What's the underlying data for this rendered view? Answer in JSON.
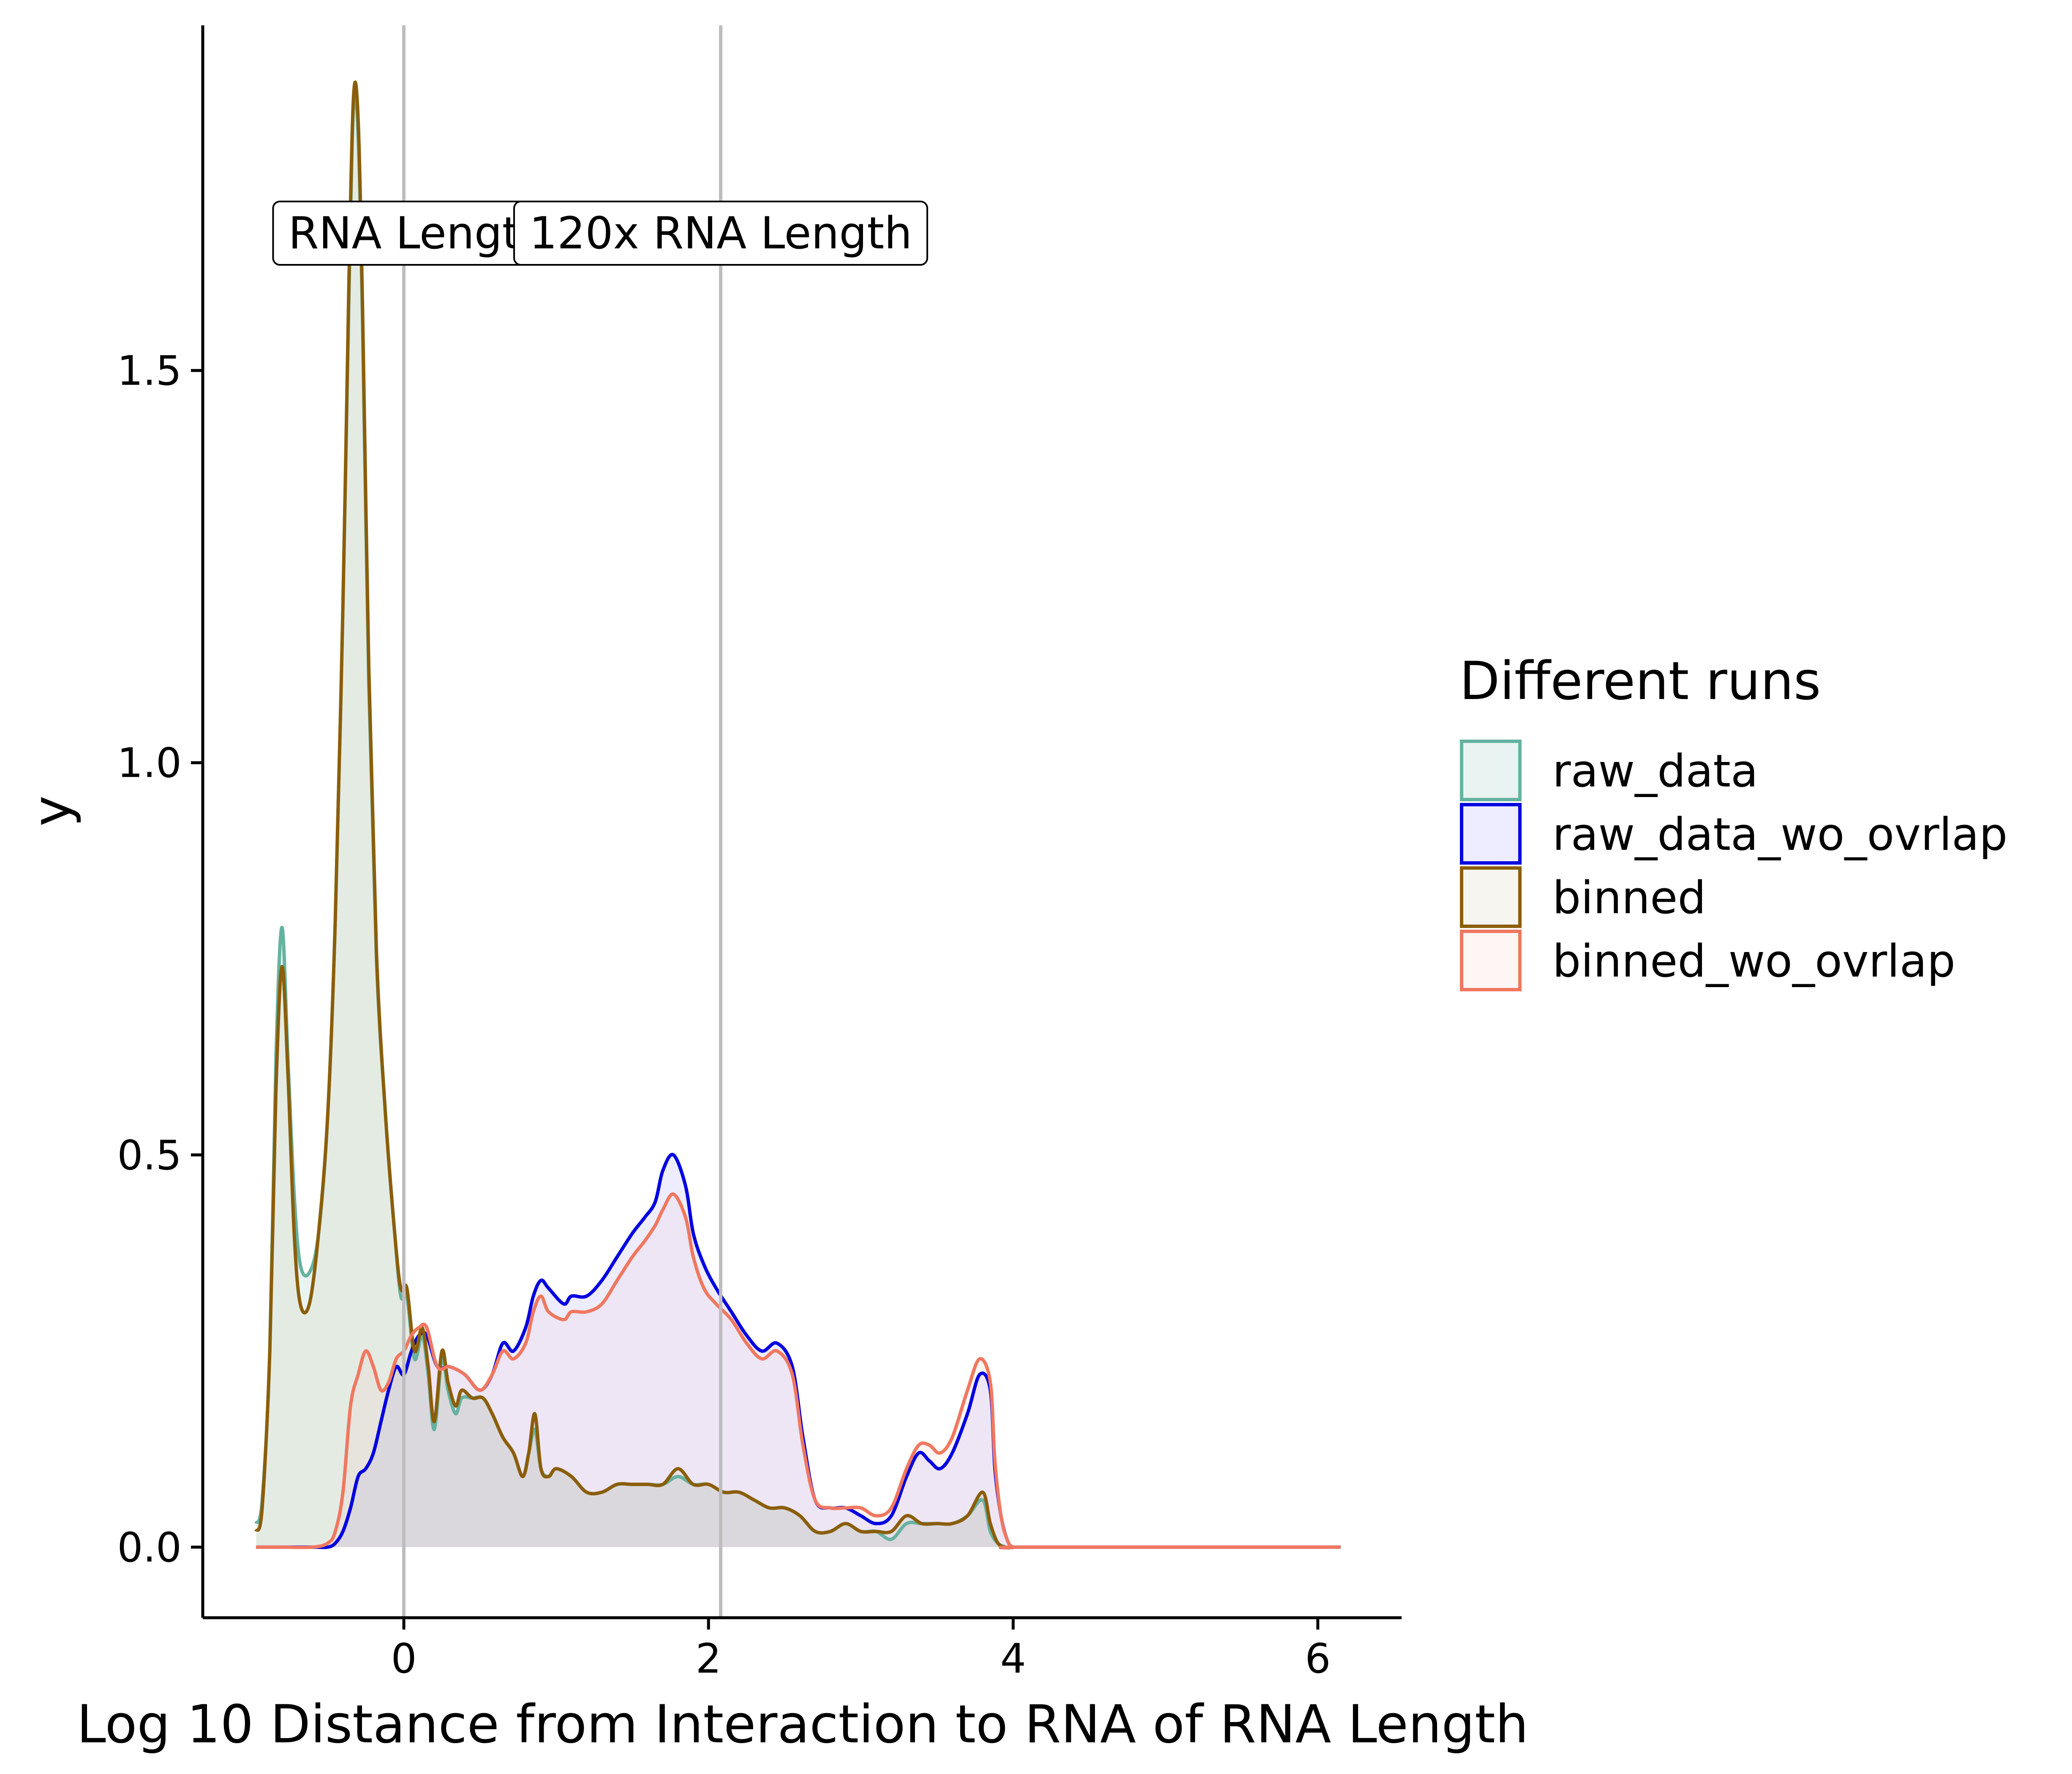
{
  "chart_data": {
    "type": "area",
    "title": "",
    "xlabel": "Log 10 Distance from Interaction to RNA of RNA Length",
    "ylabel": "y",
    "xlim": [
      -1.32,
      6.55
    ],
    "ylim": [
      -0.09,
      1.94
    ],
    "xticks": [
      0,
      2,
      4,
      6
    ],
    "yticks": [
      0.0,
      0.5,
      1.0,
      1.5
    ],
    "xtick_labels": [
      "0",
      "2",
      "4",
      "6"
    ],
    "ytick_labels": [
      "0.0",
      "0.5",
      "1.0",
      "1.5"
    ],
    "grid": false,
    "legend": {
      "title": "Different runs",
      "position": "right",
      "entries": [
        "raw_data",
        "raw_data_wo_ovrlap",
        "binned",
        "binned_wo_ovrlap"
      ]
    },
    "reference_lines": [
      {
        "x": 0.0,
        "label": "RNA Lengt"
      },
      {
        "x": 2.08,
        "label": "120x RNA Length"
      }
    ],
    "series": [
      {
        "name": "raw_data",
        "color": "#66b2a0",
        "fill": "#66b2a0",
        "points": [
          [
            -0.97,
            0.03
          ],
          [
            -0.93,
            0.06
          ],
          [
            -0.88,
            0.25
          ],
          [
            -0.84,
            0.62
          ],
          [
            -0.8,
            0.79
          ],
          [
            -0.76,
            0.62
          ],
          [
            -0.72,
            0.45
          ],
          [
            -0.68,
            0.36
          ],
          [
            -0.62,
            0.35
          ],
          [
            -0.56,
            0.4
          ],
          [
            -0.5,
            0.55
          ],
          [
            -0.45,
            0.8
          ],
          [
            -0.4,
            1.2
          ],
          [
            -0.36,
            1.6
          ],
          [
            -0.33,
            1.84
          ],
          [
            -0.3,
            1.8
          ],
          [
            -0.27,
            1.55
          ],
          [
            -0.23,
            1.1
          ],
          [
            -0.18,
            0.75
          ],
          [
            -0.12,
            0.55
          ],
          [
            -0.06,
            0.4
          ],
          [
            -0.02,
            0.32
          ],
          [
            0.02,
            0.32
          ],
          [
            0.07,
            0.24
          ],
          [
            0.12,
            0.27
          ],
          [
            0.16,
            0.22
          ],
          [
            0.2,
            0.15
          ],
          [
            0.25,
            0.24
          ],
          [
            0.29,
            0.2
          ],
          [
            0.34,
            0.17
          ],
          [
            0.38,
            0.19
          ],
          [
            0.45,
            0.19
          ],
          [
            0.52,
            0.19
          ],
          [
            0.58,
            0.17
          ],
          [
            0.65,
            0.14
          ],
          [
            0.72,
            0.12
          ],
          [
            0.78,
            0.09
          ],
          [
            0.82,
            0.12
          ],
          [
            0.86,
            0.15
          ],
          [
            0.9,
            0.1
          ],
          [
            0.95,
            0.09
          ],
          [
            1.0,
            0.1
          ],
          [
            1.1,
            0.09
          ],
          [
            1.2,
            0.07
          ],
          [
            1.3,
            0.07
          ],
          [
            1.4,
            0.08
          ],
          [
            1.5,
            0.08
          ],
          [
            1.6,
            0.08
          ],
          [
            1.7,
            0.08
          ],
          [
            1.8,
            0.09
          ],
          [
            1.9,
            0.08
          ],
          [
            2.0,
            0.08
          ],
          [
            2.1,
            0.07
          ],
          [
            2.2,
            0.07
          ],
          [
            2.3,
            0.06
          ],
          [
            2.4,
            0.05
          ],
          [
            2.5,
            0.05
          ],
          [
            2.6,
            0.04
          ],
          [
            2.7,
            0.02
          ],
          [
            2.8,
            0.02
          ],
          [
            2.9,
            0.03
          ],
          [
            3.0,
            0.02
          ],
          [
            3.1,
            0.02
          ],
          [
            3.2,
            0.01
          ],
          [
            3.3,
            0.03
          ],
          [
            3.4,
            0.03
          ],
          [
            3.5,
            0.03
          ],
          [
            3.6,
            0.03
          ],
          [
            3.7,
            0.04
          ],
          [
            3.8,
            0.06
          ],
          [
            3.85,
            0.02
          ],
          [
            3.9,
            0.005
          ],
          [
            3.95,
            0.0
          ]
        ]
      },
      {
        "name": "raw_data_wo_ovrlap",
        "color": "#0000e0",
        "fill": "#8080ff",
        "points": [
          [
            -0.97,
            0.0
          ],
          [
            -0.8,
            0.0
          ],
          [
            -0.6,
            0.0
          ],
          [
            -0.5,
            0.0
          ],
          [
            -0.45,
            0.005
          ],
          [
            -0.4,
            0.02
          ],
          [
            -0.35,
            0.05
          ],
          [
            -0.3,
            0.09
          ],
          [
            -0.25,
            0.1
          ],
          [
            -0.2,
            0.12
          ],
          [
            -0.15,
            0.16
          ],
          [
            -0.1,
            0.2
          ],
          [
            -0.05,
            0.23
          ],
          [
            0.0,
            0.22
          ],
          [
            0.05,
            0.25
          ],
          [
            0.1,
            0.27
          ],
          [
            0.15,
            0.27
          ],
          [
            0.22,
            0.23
          ],
          [
            0.3,
            0.23
          ],
          [
            0.4,
            0.22
          ],
          [
            0.5,
            0.2
          ],
          [
            0.58,
            0.22
          ],
          [
            0.65,
            0.26
          ],
          [
            0.72,
            0.25
          ],
          [
            0.8,
            0.28
          ],
          [
            0.85,
            0.32
          ],
          [
            0.9,
            0.34
          ],
          [
            0.95,
            0.33
          ],
          [
            1.05,
            0.31
          ],
          [
            1.1,
            0.32
          ],
          [
            1.2,
            0.32
          ],
          [
            1.3,
            0.34
          ],
          [
            1.4,
            0.37
          ],
          [
            1.5,
            0.4
          ],
          [
            1.58,
            0.42
          ],
          [
            1.65,
            0.44
          ],
          [
            1.7,
            0.48
          ],
          [
            1.77,
            0.5
          ],
          [
            1.85,
            0.46
          ],
          [
            1.9,
            0.4
          ],
          [
            1.97,
            0.36
          ],
          [
            2.05,
            0.33
          ],
          [
            2.15,
            0.3
          ],
          [
            2.25,
            0.27
          ],
          [
            2.35,
            0.25
          ],
          [
            2.45,
            0.26
          ],
          [
            2.55,
            0.23
          ],
          [
            2.62,
            0.14
          ],
          [
            2.7,
            0.06
          ],
          [
            2.8,
            0.05
          ],
          [
            2.9,
            0.05
          ],
          [
            3.0,
            0.04
          ],
          [
            3.1,
            0.03
          ],
          [
            3.2,
            0.04
          ],
          [
            3.3,
            0.09
          ],
          [
            3.38,
            0.12
          ],
          [
            3.45,
            0.11
          ],
          [
            3.52,
            0.1
          ],
          [
            3.6,
            0.12
          ],
          [
            3.7,
            0.17
          ],
          [
            3.78,
            0.22
          ],
          [
            3.85,
            0.2
          ],
          [
            3.88,
            0.1
          ],
          [
            3.92,
            0.04
          ],
          [
            3.96,
            0.01
          ],
          [
            4.0,
            0.0
          ],
          [
            4.1,
            0.0
          ],
          [
            6.15,
            0.0
          ]
        ]
      },
      {
        "name": "binned",
        "color": "#8b5e0a",
        "fill": "#c9ba8f",
        "points": [
          [
            -0.97,
            0.02
          ],
          [
            -0.93,
            0.05
          ],
          [
            -0.88,
            0.25
          ],
          [
            -0.84,
            0.58
          ],
          [
            -0.8,
            0.74
          ],
          [
            -0.76,
            0.6
          ],
          [
            -0.72,
            0.4
          ],
          [
            -0.68,
            0.31
          ],
          [
            -0.62,
            0.31
          ],
          [
            -0.56,
            0.4
          ],
          [
            -0.5,
            0.55
          ],
          [
            -0.45,
            0.8
          ],
          [
            -0.4,
            1.2
          ],
          [
            -0.36,
            1.62
          ],
          [
            -0.33,
            1.85
          ],
          [
            -0.3,
            1.82
          ],
          [
            -0.27,
            1.57
          ],
          [
            -0.23,
            1.12
          ],
          [
            -0.18,
            0.76
          ],
          [
            -0.12,
            0.55
          ],
          [
            -0.06,
            0.4
          ],
          [
            -0.02,
            0.33
          ],
          [
            0.02,
            0.33
          ],
          [
            0.07,
            0.25
          ],
          [
            0.12,
            0.28
          ],
          [
            0.16,
            0.23
          ],
          [
            0.2,
            0.16
          ],
          [
            0.25,
            0.25
          ],
          [
            0.29,
            0.21
          ],
          [
            0.34,
            0.18
          ],
          [
            0.38,
            0.2
          ],
          [
            0.45,
            0.19
          ],
          [
            0.52,
            0.19
          ],
          [
            0.58,
            0.17
          ],
          [
            0.65,
            0.14
          ],
          [
            0.72,
            0.12
          ],
          [
            0.78,
            0.09
          ],
          [
            0.82,
            0.12
          ],
          [
            0.86,
            0.17
          ],
          [
            0.9,
            0.1
          ],
          [
            0.95,
            0.09
          ],
          [
            1.0,
            0.1
          ],
          [
            1.1,
            0.09
          ],
          [
            1.2,
            0.07
          ],
          [
            1.3,
            0.07
          ],
          [
            1.4,
            0.08
          ],
          [
            1.5,
            0.08
          ],
          [
            1.6,
            0.08
          ],
          [
            1.7,
            0.08
          ],
          [
            1.8,
            0.1
          ],
          [
            1.9,
            0.08
          ],
          [
            2.0,
            0.08
          ],
          [
            2.1,
            0.07
          ],
          [
            2.2,
            0.07
          ],
          [
            2.3,
            0.06
          ],
          [
            2.4,
            0.05
          ],
          [
            2.5,
            0.05
          ],
          [
            2.6,
            0.04
          ],
          [
            2.7,
            0.02
          ],
          [
            2.8,
            0.02
          ],
          [
            2.9,
            0.03
          ],
          [
            3.0,
            0.02
          ],
          [
            3.1,
            0.02
          ],
          [
            3.2,
            0.02
          ],
          [
            3.3,
            0.04
          ],
          [
            3.4,
            0.03
          ],
          [
            3.5,
            0.03
          ],
          [
            3.6,
            0.03
          ],
          [
            3.7,
            0.04
          ],
          [
            3.8,
            0.07
          ],
          [
            3.85,
            0.03
          ],
          [
            3.9,
            0.005
          ],
          [
            3.95,
            0.0
          ]
        ]
      },
      {
        "name": "binned_wo_ovrlap",
        "color": "#f07860",
        "fill": "#f9c2b8",
        "points": [
          [
            -0.97,
            0.0
          ],
          [
            -0.8,
            0.0
          ],
          [
            -0.6,
            0.0
          ],
          [
            -0.5,
            0.005
          ],
          [
            -0.45,
            0.02
          ],
          [
            -0.4,
            0.07
          ],
          [
            -0.35,
            0.18
          ],
          [
            -0.3,
            0.22
          ],
          [
            -0.25,
            0.25
          ],
          [
            -0.2,
            0.23
          ],
          [
            -0.15,
            0.2
          ],
          [
            -0.1,
            0.21
          ],
          [
            -0.05,
            0.24
          ],
          [
            0.0,
            0.25
          ],
          [
            0.05,
            0.27
          ],
          [
            0.1,
            0.28
          ],
          [
            0.15,
            0.28
          ],
          [
            0.22,
            0.23
          ],
          [
            0.3,
            0.23
          ],
          [
            0.4,
            0.22
          ],
          [
            0.5,
            0.2
          ],
          [
            0.58,
            0.22
          ],
          [
            0.65,
            0.25
          ],
          [
            0.72,
            0.24
          ],
          [
            0.8,
            0.26
          ],
          [
            0.85,
            0.3
          ],
          [
            0.9,
            0.32
          ],
          [
            0.95,
            0.3
          ],
          [
            1.05,
            0.29
          ],
          [
            1.1,
            0.3
          ],
          [
            1.2,
            0.3
          ],
          [
            1.3,
            0.31
          ],
          [
            1.4,
            0.34
          ],
          [
            1.5,
            0.37
          ],
          [
            1.58,
            0.39
          ],
          [
            1.65,
            0.41
          ],
          [
            1.7,
            0.43
          ],
          [
            1.77,
            0.45
          ],
          [
            1.85,
            0.42
          ],
          [
            1.9,
            0.37
          ],
          [
            1.97,
            0.33
          ],
          [
            2.05,
            0.31
          ],
          [
            2.15,
            0.29
          ],
          [
            2.25,
            0.26
          ],
          [
            2.35,
            0.24
          ],
          [
            2.45,
            0.25
          ],
          [
            2.55,
            0.22
          ],
          [
            2.62,
            0.13
          ],
          [
            2.7,
            0.06
          ],
          [
            2.8,
            0.05
          ],
          [
            2.9,
            0.05
          ],
          [
            3.0,
            0.05
          ],
          [
            3.1,
            0.04
          ],
          [
            3.2,
            0.05
          ],
          [
            3.3,
            0.1
          ],
          [
            3.38,
            0.13
          ],
          [
            3.45,
            0.13
          ],
          [
            3.52,
            0.12
          ],
          [
            3.6,
            0.14
          ],
          [
            3.7,
            0.2
          ],
          [
            3.78,
            0.24
          ],
          [
            3.85,
            0.21
          ],
          [
            3.88,
            0.11
          ],
          [
            3.92,
            0.04
          ],
          [
            3.96,
            0.01
          ],
          [
            4.0,
            0.0
          ],
          [
            4.1,
            0.0
          ],
          [
            6.15,
            0.0
          ]
        ]
      }
    ]
  }
}
